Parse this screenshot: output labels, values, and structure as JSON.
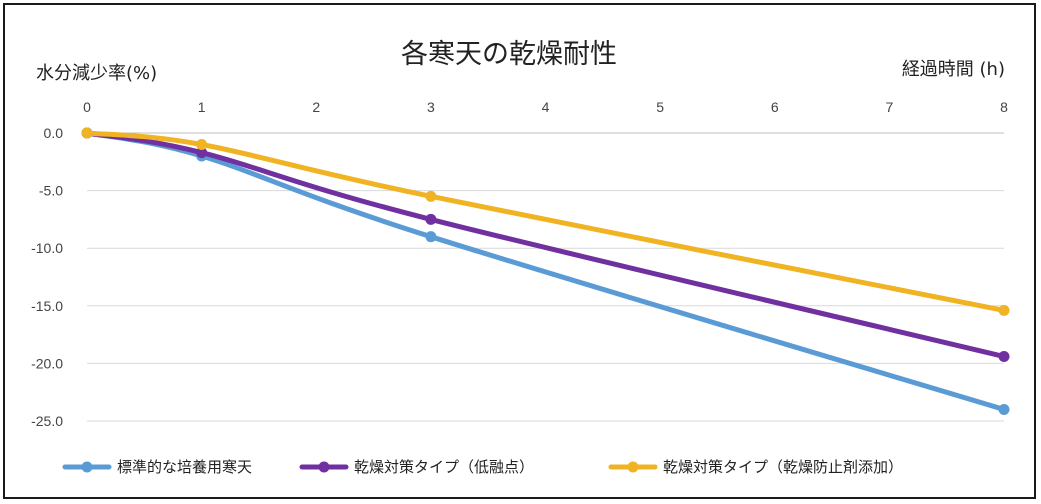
{
  "chart_data": {
    "type": "line",
    "title": "各寒天の乾燥耐性",
    "ylabel": "水分減少率(%)",
    "xlabel": "経過時間 (h)",
    "x_ticks": [
      "0",
      "1",
      "2",
      "3",
      "4",
      "5",
      "6",
      "7",
      "8"
    ],
    "y_ticks": [
      "0.0",
      "-5.0",
      "-10.0",
      "-15.0",
      "-20.0",
      "-25.0"
    ],
    "xlim": [
      0,
      8
    ],
    "ylim": [
      -25,
      0
    ],
    "x_axis_position": "top",
    "grid": "horizontal",
    "legend_position": "bottom",
    "series": [
      {
        "name": "標準的な培養用寒天",
        "color": "#5b9bd5",
        "x": [
          0,
          1,
          3,
          8
        ],
        "y": [
          0.0,
          -2.0,
          -9.0,
          -24.0
        ]
      },
      {
        "name": "乾燥対策タイプ（低融点）",
        "color": "#7030a0",
        "x": [
          0,
          1,
          3,
          8
        ],
        "y": [
          0.0,
          -1.7,
          -7.5,
          -19.4
        ]
      },
      {
        "name": "乾燥対策タイプ（乾燥防止剤添加）",
        "color": "#f0b323",
        "x": [
          0,
          1,
          3,
          8
        ],
        "y": [
          0.0,
          -1.0,
          -5.5,
          -15.4
        ]
      }
    ]
  }
}
